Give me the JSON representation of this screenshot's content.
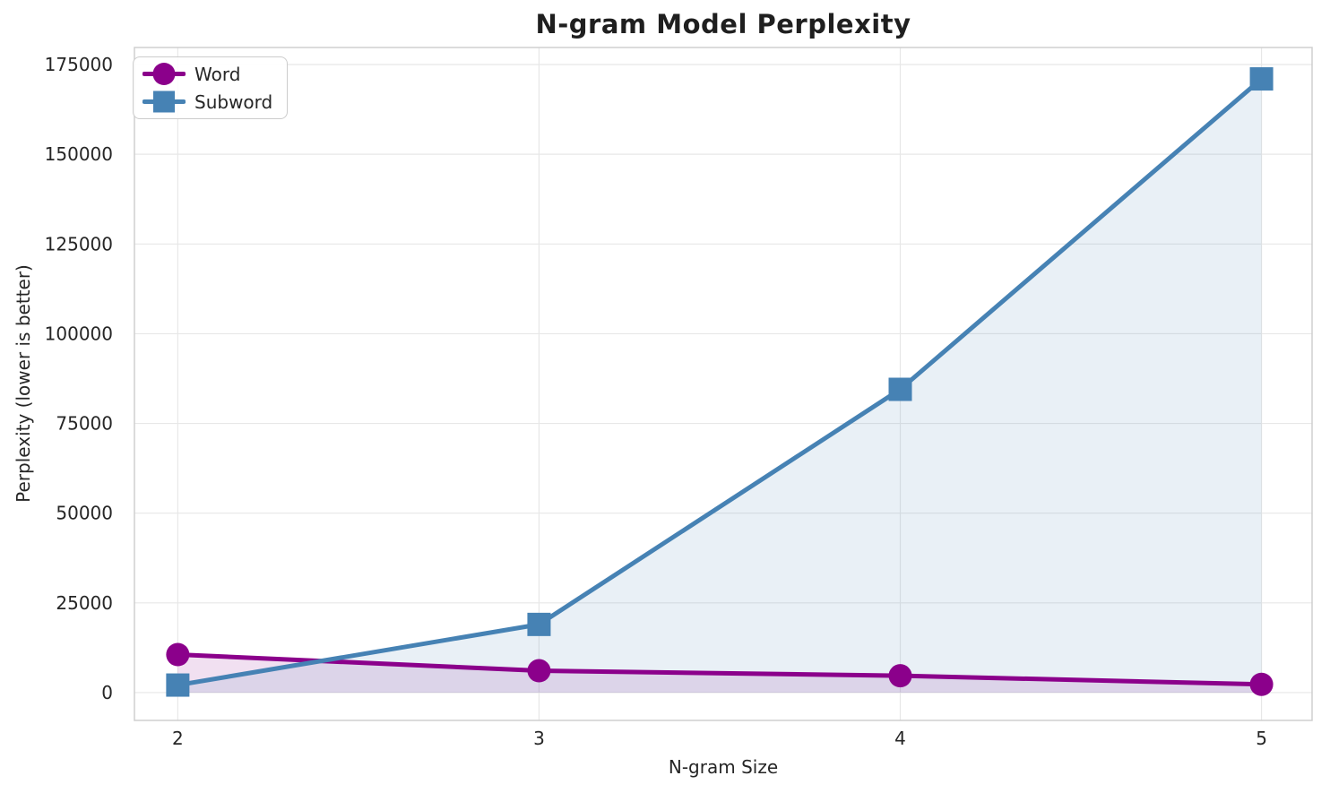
{
  "figure": {
    "background": "#ffffff"
  },
  "chart_data": {
    "type": "line",
    "title": "N-gram Model Perplexity",
    "xlabel": "N-gram Size",
    "ylabel": "Perplexity (lower is better)",
    "x": [
      2,
      3,
      4,
      5
    ],
    "series": [
      {
        "name": "Word",
        "values": [
          10600,
          6100,
          4700,
          2300
        ],
        "color": "#8B008B",
        "marker": "circle",
        "fill_to_zero": true,
        "fill_opacity": 0.12
      },
      {
        "name": "Subword",
        "values": [
          2100,
          19000,
          84500,
          171000
        ],
        "color": "#4682B4",
        "marker": "square",
        "fill_to_zero": true,
        "fill_opacity": 0.12
      }
    ],
    "xticks": [
      2,
      3,
      4,
      5
    ],
    "yticks": [
      0,
      25000,
      50000,
      75000,
      100000,
      125000,
      150000,
      175000
    ],
    "xlim": [
      1.88,
      5.14
    ],
    "ylim": [
      -7750,
      179750
    ],
    "grid": true,
    "grid_color": "#e7e7e7",
    "spine_color": "#cfcfcf",
    "text_color": "#262626",
    "legend_position": "upper-left",
    "line_width": 5,
    "marker_size": 26
  }
}
